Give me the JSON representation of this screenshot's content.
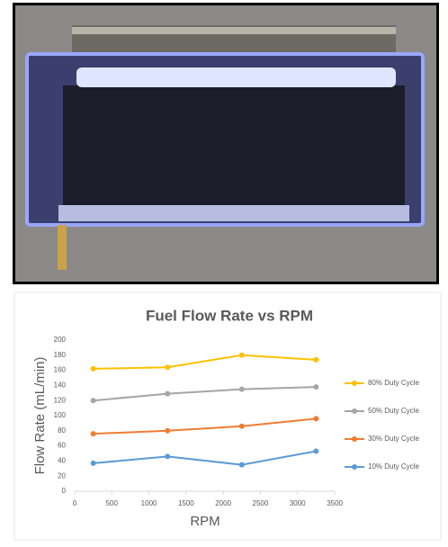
{
  "chart_data": {
    "type": "line",
    "title": "Fuel Flow Rate vs RPM",
    "x_label": "RPM",
    "y_label": "Flow Rate (mL/min)",
    "x": [
      250,
      1250,
      2250,
      3250
    ],
    "series": [
      {
        "name": "80% Duty Cycle",
        "color": "#ffc000",
        "values": [
          162,
          164,
          180,
          174
        ]
      },
      {
        "name": "50% Duty Cycle",
        "color": "#a5a5a5",
        "values": [
          120,
          129,
          135,
          138
        ]
      },
      {
        "name": "30% Duty Cycle",
        "color": "#ed7d31",
        "values": [
          76,
          80,
          86,
          96
        ]
      },
      {
        "name": "10% Duty Cycle",
        "color": "#5b9bd5",
        "values": [
          37,
          46,
          35,
          53
        ]
      }
    ],
    "xlim": [
      0,
      3500
    ],
    "xticks": [
      0,
      500,
      1000,
      1500,
      2000,
      2500,
      3000,
      3500
    ],
    "ylim": [
      0,
      200
    ],
    "yticks": [
      0,
      20,
      40,
      60,
      80,
      100,
      120,
      140,
      160,
      180,
      200
    ],
    "grid": false,
    "legend": "right"
  }
}
